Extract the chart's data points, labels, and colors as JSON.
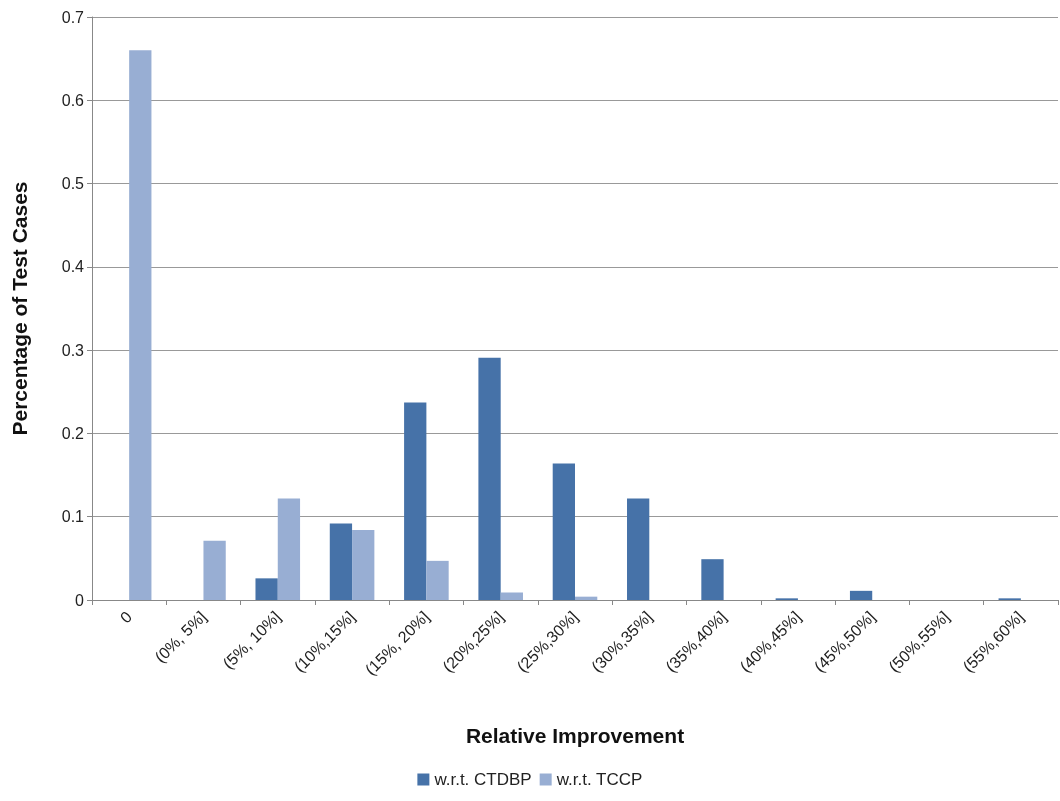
{
  "chart_data": {
    "type": "bar",
    "xlabel": "Relative Improvement",
    "ylabel": "Percentage of Test Cases",
    "categories": [
      "0",
      "(0%, 5%]",
      "(5%, 10%]",
      "(10%,15%]",
      "(15%, 20%]",
      "(20%,25%]",
      "(25%,30%]",
      "(30%,35%]",
      "(35%,40%]",
      "(40%,45%]",
      "(45%,50%]",
      "(50%,55%]",
      "(55%,60%]"
    ],
    "series": [
      {
        "name": "w.r.t. CTDBP",
        "color": "#4672a8",
        "values": [
          0,
          0,
          0.026,
          0.092,
          0.237,
          0.291,
          0.164,
          0.122,
          0.049,
          0.002,
          0.011,
          0,
          0.002
        ]
      },
      {
        "name": "w.r.t. TCCP",
        "color": "#98aed3",
        "values": [
          0.66,
          0.071,
          0.122,
          0.084,
          0.047,
          0.009,
          0.004,
          0,
          0,
          0,
          0,
          0,
          0
        ]
      }
    ],
    "ylim": [
      0,
      0.7
    ],
    "yticks": [
      0,
      0.1,
      0.2,
      0.3,
      0.4,
      0.5,
      0.6,
      0.7
    ],
    "grid": "y",
    "legend": "bottom"
  }
}
